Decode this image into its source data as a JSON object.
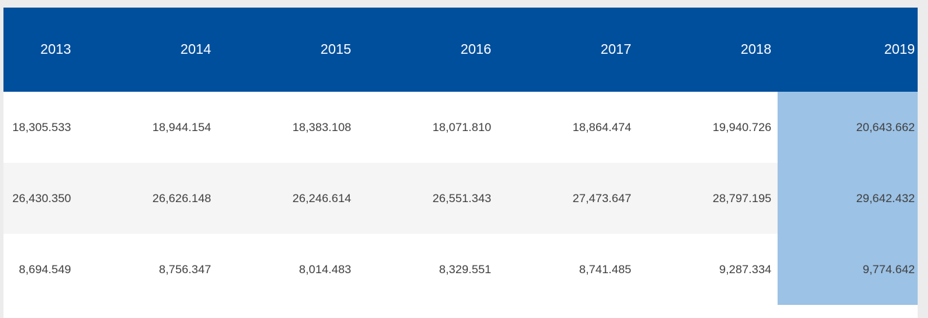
{
  "table": {
    "columns": [
      "2013",
      "2014",
      "2015",
      "2016",
      "2017",
      "2018",
      "2019"
    ],
    "highlighted_column": "2019",
    "rows": [
      [
        "18,305.533",
        "18,944.154",
        "18,383.108",
        "18,071.810",
        "18,864.474",
        "19,940.726",
        "20,643.662"
      ],
      [
        "26,430.350",
        "26,626.148",
        "26,246.614",
        "26,551.343",
        "27,473.647",
        "28,797.195",
        "29,642.432"
      ],
      [
        "8,694.549",
        "8,756.347",
        "8,014.483",
        "8,329.551",
        "8,741.485",
        "9,287.334",
        "9,774.642"
      ]
    ],
    "colors": {
      "page_bg": "#ECECEC",
      "header_bg": "#004F9C",
      "header_text": "#FFFFFF",
      "row_bg": "#FFFFFF",
      "stripe_bg": "#F5F5F5",
      "highlight_bg": "#9CC2E5",
      "cell_text": "#3F3F3F"
    }
  }
}
